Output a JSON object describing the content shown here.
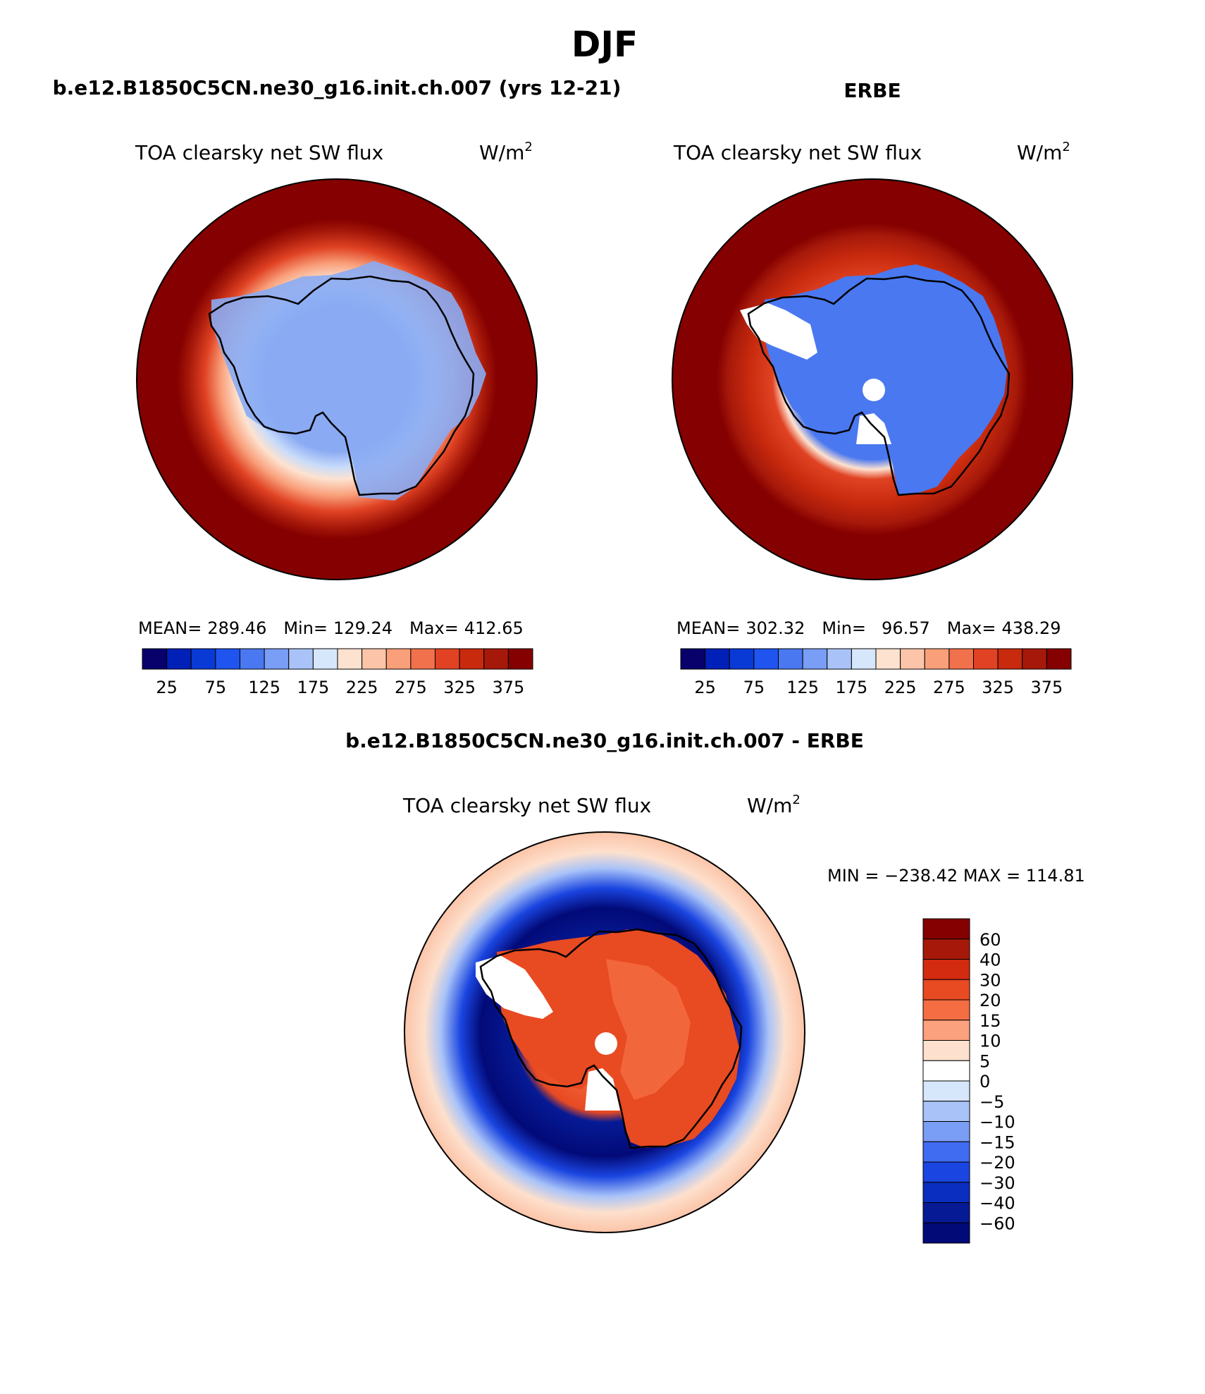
{
  "page": {
    "title": "DJF",
    "panel1_header": "b.e12.B1850C5CN.ne30_g16.init.ch.007 (yrs 12-21)",
    "panel2_header": "ERBE",
    "panel3_header": "b.e12.B1850C5CN.ne30_g16.init.ch.007 - ERBE"
  },
  "chart_data": [
    {
      "type": "heatmap",
      "projection": "south-polar-stereographic",
      "title": "TOA clearsky net SW flux",
      "units": "W/m",
      "units_exp": "2",
      "stats": {
        "mean_label": "MEAN=",
        "mean": "289.46",
        "min_label": "Min=",
        "min": "129.24",
        "max_label": "Max=",
        "max": "412.65"
      },
      "colorbar": {
        "levels": [
          25,
          50,
          75,
          100,
          125,
          150,
          175,
          200,
          225,
          250,
          275,
          300,
          325,
          350,
          375
        ],
        "tick_labels": [
          "25",
          "75",
          "125",
          "175",
          "225",
          "275",
          "325",
          "375"
        ],
        "colors": [
          "#08006b",
          "#0020b8",
          "#0a3ad6",
          "#1f55ee",
          "#4a78f0",
          "#7a9df5",
          "#a9c3f8",
          "#d6e6fb",
          "#fde2d0",
          "#fcc4a8",
          "#f99f7a",
          "#f0714c",
          "#e04223",
          "#c82a0e",
          "#a6190a",
          "#850000"
        ]
      }
    },
    {
      "type": "heatmap",
      "projection": "south-polar-stereographic",
      "title": "TOA clearsky net SW flux",
      "units": "W/m",
      "units_exp": "2",
      "stats": {
        "mean_label": "MEAN=",
        "mean": "302.32",
        "min_label": "Min=",
        "min": "96.57",
        "max_label": "Max=",
        "max": "438.29"
      },
      "colorbar": {
        "levels": [
          25,
          50,
          75,
          100,
          125,
          150,
          175,
          200,
          225,
          250,
          275,
          300,
          325,
          350,
          375
        ],
        "tick_labels": [
          "25",
          "75",
          "125",
          "175",
          "225",
          "275",
          "325",
          "375"
        ],
        "colors": [
          "#08006b",
          "#0020b8",
          "#0a3ad6",
          "#1f55ee",
          "#4a78f0",
          "#7a9df5",
          "#a9c3f8",
          "#d6e6fb",
          "#fde2d0",
          "#fcc4a8",
          "#f99f7a",
          "#f0714c",
          "#e04223",
          "#c82a0e",
          "#a6190a",
          "#850000"
        ]
      }
    },
    {
      "type": "heatmap",
      "projection": "south-polar-stereographic",
      "title": "TOA clearsky net SW flux",
      "units": "W/m",
      "units_exp": "2",
      "stats": {
        "text": "MIN = −238.42 MAX = 114.81",
        "min": -238.42,
        "max": 114.81
      },
      "colorbar": {
        "levels": [
          60,
          40,
          30,
          20,
          15,
          10,
          5,
          0,
          -5,
          -10,
          -15,
          -20,
          -30,
          -40,
          -60
        ],
        "tick_labels": [
          "60",
          "40",
          "30",
          "20",
          "15",
          "10",
          "5",
          "0",
          "−5",
          "−10",
          "−15",
          "−20",
          "−30",
          "−40",
          "−60"
        ],
        "colors": [
          "#850000",
          "#a6190a",
          "#d22b10",
          "#e84a22",
          "#f46d43",
          "#fca17d",
          "#fde0cd",
          "#ffffff",
          "#d6e6fb",
          "#a9c3f8",
          "#7a9df5",
          "#3f6cf0",
          "#1a45e0",
          "#0a2ec0",
          "#061a95",
          "#020a78"
        ]
      }
    }
  ]
}
